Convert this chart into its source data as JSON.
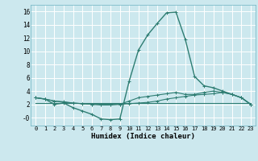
{
  "xlabel": "Humidex (Indice chaleur)",
  "bg_color": "#cce8ee",
  "grid_color": "#ffffff",
  "line_color": "#2e7d72",
  "xlim": [
    -0.5,
    23.5
  ],
  "ylim": [
    -1.2,
    17.0
  ],
  "x_ticks": [
    0,
    1,
    2,
    3,
    4,
    5,
    6,
    7,
    8,
    9,
    10,
    11,
    12,
    13,
    14,
    15,
    16,
    17,
    18,
    19,
    20,
    21,
    22,
    23
  ],
  "y_ticks": [
    0,
    2,
    4,
    6,
    8,
    10,
    12,
    14,
    16
  ],
  "y_tick_labels": [
    "-0",
    "2",
    "4",
    "6",
    "8",
    "10",
    "12",
    "14",
    "16"
  ],
  "series": [
    {
      "x": [
        0,
        1,
        2,
        3,
        4,
        5,
        6,
        7,
        8,
        9,
        10,
        11,
        12,
        13,
        14,
        15,
        16,
        17,
        18,
        19,
        20,
        21,
        22,
        23
      ],
      "y": [
        3.0,
        2.8,
        2.0,
        2.2,
        1.5,
        1.0,
        0.5,
        -0.2,
        -0.3,
        -0.2,
        5.5,
        10.2,
        12.5,
        14.2,
        15.8,
        15.9,
        11.8,
        6.2,
        4.8,
        4.5,
        4.0,
        3.5,
        3.0,
        2.0
      ],
      "marker": true,
      "linewidth": 1.0,
      "markersize": 3.5
    },
    {
      "x": [
        0,
        1,
        2,
        3,
        4,
        5,
        6,
        7,
        8,
        9,
        10,
        11,
        12,
        13,
        14,
        15,
        16,
        17,
        18,
        19,
        20,
        21,
        22,
        23
      ],
      "y": [
        3.0,
        2.8,
        2.5,
        2.3,
        2.2,
        2.1,
        2.0,
        2.0,
        2.0,
        2.0,
        2.1,
        2.2,
        2.3,
        2.5,
        2.8,
        3.0,
        3.2,
        3.4,
        3.5,
        3.6,
        3.8,
        3.5,
        3.0,
        2.0
      ],
      "marker": true,
      "linewidth": 0.8,
      "markersize": 2.5
    },
    {
      "x": [
        0,
        23
      ],
      "y": [
        2.2,
        2.2
      ],
      "marker": false,
      "linewidth": 0.8,
      "markersize": 0
    },
    {
      "x": [
        0,
        1,
        2,
        3,
        4,
        5,
        6,
        7,
        8,
        9,
        10,
        11,
        12,
        13,
        14,
        15,
        16,
        17,
        18,
        19,
        20,
        21,
        22,
        23
      ],
      "y": [
        3.0,
        2.8,
        2.5,
        2.4,
        2.2,
        2.1,
        2.0,
        1.9,
        1.9,
        2.0,
        2.5,
        3.0,
        3.2,
        3.4,
        3.6,
        3.8,
        3.5,
        3.5,
        3.8,
        4.0,
        3.8,
        3.5,
        3.0,
        2.0
      ],
      "marker": true,
      "linewidth": 0.8,
      "markersize": 2.5
    }
  ]
}
